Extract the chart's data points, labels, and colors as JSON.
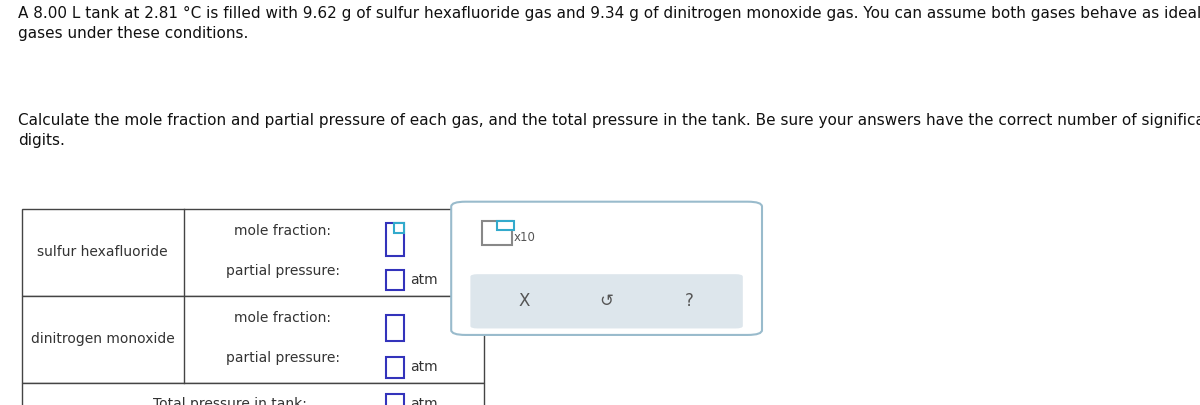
{
  "title_text": "A 8.00 L tank at 2.81 °C is filled with 9.62 g of sulfur hexafluoride gas and 9.34 g of dinitrogen monoxide gas. You can assume both gases behave as ideal\ngases under these conditions.",
  "subtitle_text": "Calculate the mole fraction and partial pressure of each gas, and the total pressure in the tank. Be sure your answers have the correct number of significant\ndigits.",
  "bg_color": "#ffffff",
  "table_border_color": "#444444",
  "input_box_color": "#3333bb",
  "input_box_color2": "#33aacc",
  "popup_bg": "#ffffff",
  "popup_border": "#99bbcc",
  "popup_inner_bg": "#dde6ec",
  "text_color": "#111111",
  "label_color": "#333333",
  "row1_label": "sulfur hexafluoride",
  "row2_label": "dinitrogen monoxide",
  "row3_label": "Total pressure in tank:",
  "mole_fraction_label": "mole fraction:",
  "partial_pressure_label": "partial pressure:",
  "atm_label": "atm",
  "x10_label": "x10",
  "popup_symbols": [
    "X",
    "↺",
    "?"
  ],
  "font_size_title": 11.0,
  "font_size_cell": 10.0,
  "font_size_sym": 12
}
